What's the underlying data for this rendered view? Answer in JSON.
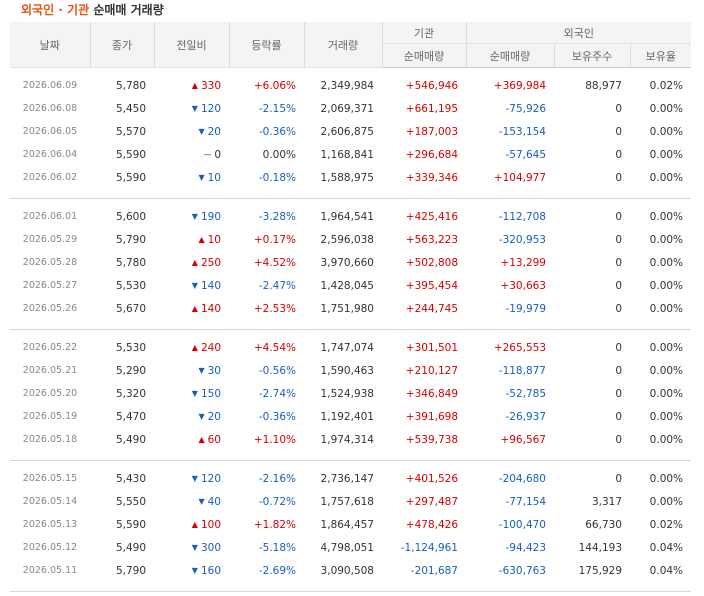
{
  "title": {
    "part1": "외국인 · 기관",
    "part2": "순매매 거래량"
  },
  "headers": {
    "date": "날짜",
    "close": "종가",
    "change": "전일비",
    "rate": "등락률",
    "volume": "거래량",
    "institution": "기관",
    "foreign": "외국인",
    "inst_net": "순매매량",
    "foreign_net": "순매매량",
    "holdings": "보유주수",
    "ratio": "보유율"
  },
  "icons": {
    "up": "▲",
    "down": "▼",
    "flat": "—"
  },
  "colors": {
    "up": "#d60000",
    "down": "#1560bd",
    "title_accent": "#e8530e"
  },
  "groups": [
    [
      {
        "date": "2026.06.09",
        "close": "5,780",
        "dir": "up",
        "change": "330",
        "rate": "+6.06%",
        "volume": "2,349,984",
        "inst": "+546,946",
        "frgn": "+369,984",
        "hold": "88,977",
        "ratio": "0.02%"
      },
      {
        "date": "2026.06.08",
        "close": "5,450",
        "dir": "down",
        "change": "120",
        "rate": "-2.15%",
        "volume": "2,069,371",
        "inst": "+661,195",
        "frgn": "-75,926",
        "hold": "0",
        "ratio": "0.00%"
      },
      {
        "date": "2026.06.05",
        "close": "5,570",
        "dir": "down",
        "change": "20",
        "rate": "-0.36%",
        "volume": "2,606,875",
        "inst": "+187,003",
        "frgn": "-153,154",
        "hold": "0",
        "ratio": "0.00%"
      },
      {
        "date": "2026.06.04",
        "close": "5,590",
        "dir": "flat",
        "change": "0",
        "rate": "0.00%",
        "volume": "1,168,841",
        "inst": "+296,684",
        "frgn": "-57,645",
        "hold": "0",
        "ratio": "0.00%"
      },
      {
        "date": "2026.06.02",
        "close": "5,590",
        "dir": "down",
        "change": "10",
        "rate": "-0.18%",
        "volume": "1,588,975",
        "inst": "+339,346",
        "frgn": "+104,977",
        "hold": "0",
        "ratio": "0.00%"
      }
    ],
    [
      {
        "date": "2026.06.01",
        "close": "5,600",
        "dir": "down",
        "change": "190",
        "rate": "-3.28%",
        "volume": "1,964,541",
        "inst": "+425,416",
        "frgn": "-112,708",
        "hold": "0",
        "ratio": "0.00%"
      },
      {
        "date": "2026.05.29",
        "close": "5,790",
        "dir": "up",
        "change": "10",
        "rate": "+0.17%",
        "volume": "2,596,038",
        "inst": "+563,223",
        "frgn": "-320,953",
        "hold": "0",
        "ratio": "0.00%"
      },
      {
        "date": "2026.05.28",
        "close": "5,780",
        "dir": "up",
        "change": "250",
        "rate": "+4.52%",
        "volume": "3,970,660",
        "inst": "+502,808",
        "frgn": "+13,299",
        "hold": "0",
        "ratio": "0.00%"
      },
      {
        "date": "2026.05.27",
        "close": "5,530",
        "dir": "down",
        "change": "140",
        "rate": "-2.47%",
        "volume": "1,428,045",
        "inst": "+395,454",
        "frgn": "+30,663",
        "hold": "0",
        "ratio": "0.00%"
      },
      {
        "date": "2026.05.26",
        "close": "5,670",
        "dir": "up",
        "change": "140",
        "rate": "+2.53%",
        "volume": "1,751,980",
        "inst": "+244,745",
        "frgn": "-19,979",
        "hold": "0",
        "ratio": "0.00%"
      }
    ],
    [
      {
        "date": "2026.05.22",
        "close": "5,530",
        "dir": "up",
        "change": "240",
        "rate": "+4.54%",
        "volume": "1,747,074",
        "inst": "+301,501",
        "frgn": "+265,553",
        "hold": "0",
        "ratio": "0.00%"
      },
      {
        "date": "2026.05.21",
        "close": "5,290",
        "dir": "down",
        "change": "30",
        "rate": "-0.56%",
        "volume": "1,590,463",
        "inst": "+210,127",
        "frgn": "-118,877",
        "hold": "0",
        "ratio": "0.00%"
      },
      {
        "date": "2026.05.20",
        "close": "5,320",
        "dir": "down",
        "change": "150",
        "rate": "-2.74%",
        "volume": "1,524,938",
        "inst": "+346,849",
        "frgn": "-52,785",
        "hold": "0",
        "ratio": "0.00%"
      },
      {
        "date": "2026.05.19",
        "close": "5,470",
        "dir": "down",
        "change": "20",
        "rate": "-0.36%",
        "volume": "1,192,401",
        "inst": "+391,698",
        "frgn": "-26,937",
        "hold": "0",
        "ratio": "0.00%"
      },
      {
        "date": "2026.05.18",
        "close": "5,490",
        "dir": "up",
        "change": "60",
        "rate": "+1.10%",
        "volume": "1,974,314",
        "inst": "+539,738",
        "frgn": "+96,567",
        "hold": "0",
        "ratio": "0.00%"
      }
    ],
    [
      {
        "date": "2026.05.15",
        "close": "5,430",
        "dir": "down",
        "change": "120",
        "rate": "-2.16%",
        "volume": "2,736,147",
        "inst": "+401,526",
        "frgn": "-204,680",
        "hold": "0",
        "ratio": "0.00%"
      },
      {
        "date": "2026.05.14",
        "close": "5,550",
        "dir": "down",
        "change": "40",
        "rate": "-0.72%",
        "volume": "1,757,618",
        "inst": "+297,487",
        "frgn": "-77,154",
        "hold": "3,317",
        "ratio": "0.00%"
      },
      {
        "date": "2026.05.13",
        "close": "5,590",
        "dir": "up",
        "change": "100",
        "rate": "+1.82%",
        "volume": "1,864,457",
        "inst": "+478,426",
        "frgn": "-100,470",
        "hold": "66,730",
        "ratio": "0.02%"
      },
      {
        "date": "2026.05.12",
        "close": "5,490",
        "dir": "down",
        "change": "300",
        "rate": "-5.18%",
        "volume": "4,798,051",
        "inst": "-1,124,961",
        "frgn": "-94,423",
        "hold": "144,193",
        "ratio": "0.04%"
      },
      {
        "date": "2026.05.11",
        "close": "5,790",
        "dir": "down",
        "change": "160",
        "rate": "-2.69%",
        "volume": "3,090,508",
        "inst": "-201,687",
        "frgn": "-630,763",
        "hold": "175,929",
        "ratio": "0.04%"
      }
    ]
  ]
}
